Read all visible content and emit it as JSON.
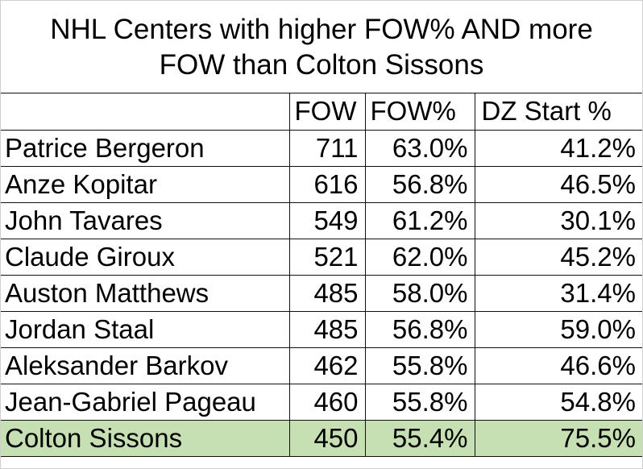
{
  "chart_data": {
    "type": "table",
    "title_lines": [
      "NHL Centers with higher FOW% AND more",
      "FOW than Colton Sissons"
    ],
    "columns": [
      "",
      "FOW",
      "FOW%",
      "DZ Start %"
    ],
    "rows": [
      {
        "name": "Patrice Bergeron",
        "fow": "711",
        "fow_pct": "63.0%",
        "dz_start_pct": "41.2%"
      },
      {
        "name": "Anze Kopitar",
        "fow": "616",
        "fow_pct": "56.8%",
        "dz_start_pct": "46.5%"
      },
      {
        "name": "John Tavares",
        "fow": "549",
        "fow_pct": "61.2%",
        "dz_start_pct": "30.1%"
      },
      {
        "name": "Claude Giroux",
        "fow": "521",
        "fow_pct": "62.0%",
        "dz_start_pct": "45.2%"
      },
      {
        "name": "Auston Matthews",
        "fow": "485",
        "fow_pct": "58.0%",
        "dz_start_pct": "31.4%"
      },
      {
        "name": "Jordan Staal",
        "fow": "485",
        "fow_pct": "56.8%",
        "dz_start_pct": "59.0%"
      },
      {
        "name": "Aleksander Barkov",
        "fow": "462",
        "fow_pct": "55.8%",
        "dz_start_pct": "46.6%"
      },
      {
        "name": "Jean-Gabriel Pageau",
        "fow": "460",
        "fow_pct": "55.8%",
        "dz_start_pct": "54.8%"
      },
      {
        "name": "Colton Sissons",
        "fow": "450",
        "fow_pct": "55.4%",
        "dz_start_pct": "75.5%",
        "highlighted": true
      }
    ],
    "highlight_color": "#c6e0b4",
    "grid": true
  }
}
